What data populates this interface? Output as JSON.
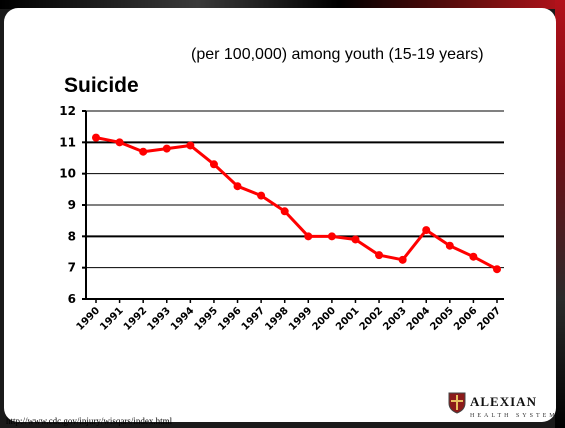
{
  "slide": {
    "subtitle": "(per 100,000) among youth (15-19 years)",
    "title": "Suicide",
    "source": "http://www.cdc.gov/injury/wisqars/index.html",
    "logo": {
      "name": "ALEXIAN",
      "sub": "HEALTH SYSTEM",
      "icon": "shield-crest-icon"
    }
  },
  "chart_data": {
    "type": "line",
    "title": "Suicide",
    "subtitle": "(per 100,000) among youth (15-19 years)",
    "xlabel": "",
    "ylabel": "",
    "ylim": [
      6,
      12
    ],
    "yticks": [
      6,
      7,
      8,
      9,
      10,
      11,
      12
    ],
    "grid": true,
    "categories": [
      "1990",
      "1991",
      "1992",
      "1993",
      "1994",
      "1995",
      "1996",
      "1997",
      "1998",
      "1999",
      "2000",
      "2001",
      "2002",
      "2003",
      "2004",
      "2005",
      "2006",
      "2007"
    ],
    "series": [
      {
        "values": [
          11.15,
          11.0,
          10.7,
          10.8,
          10.9,
          10.3,
          9.6,
          9.3,
          8.8,
          8.0,
          8.0,
          7.9,
          7.4,
          7.25,
          8.2,
          7.7,
          7.35,
          6.95
        ],
        "color": "#ff0000"
      }
    ]
  }
}
